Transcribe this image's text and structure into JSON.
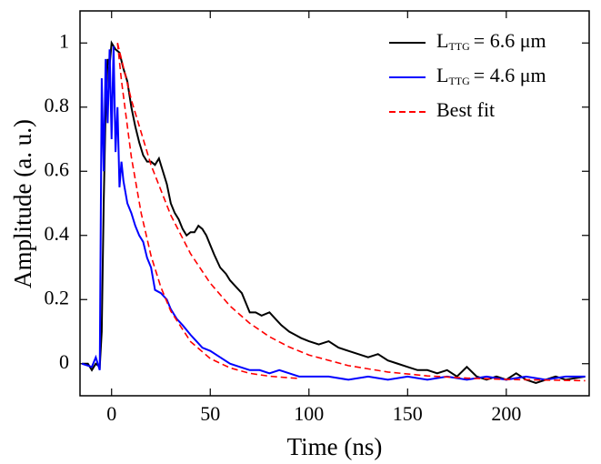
{
  "chart_data": {
    "type": "line",
    "xlabel": "Time (ns)",
    "ylabel": "Amplitude (a. u.)",
    "xlim": [
      -16,
      242
    ],
    "ylim": [
      -0.1,
      1.1
    ],
    "xticks": [
      0,
      50,
      100,
      150,
      200
    ],
    "yticks": [
      0,
      0.2,
      0.4,
      0.6,
      0.8,
      1
    ],
    "legend": "upper right",
    "series": [
      {
        "name": {
          "main": "L",
          "sub": "TTG",
          "rest": "= 6.6 μm"
        },
        "color": "#000000",
        "style": "solid",
        "x": [
          -15,
          -12,
          -10,
          -8,
          -6,
          -5,
          -4,
          -3,
          -2,
          -1,
          0,
          2,
          4,
          6,
          8,
          10,
          12,
          14,
          16,
          18,
          20,
          22,
          24,
          26,
          28,
          30,
          32,
          34,
          36,
          38,
          40,
          42,
          44,
          46,
          48,
          50,
          52,
          55,
          58,
          60,
          63,
          66,
          70,
          73,
          76,
          80,
          83,
          86,
          90,
          93,
          96,
          100,
          105,
          110,
          115,
          120,
          125,
          130,
          135,
          140,
          145,
          150,
          155,
          160,
          165,
          170,
          175,
          180,
          185,
          190,
          195,
          200,
          205,
          210,
          215,
          220,
          225,
          230,
          240
        ],
        "values": [
          0,
          0,
          -0.02,
          0,
          -0.01,
          0.1,
          0.5,
          0.8,
          0.95,
          0.93,
          1.0,
          0.98,
          0.97,
          0.92,
          0.88,
          0.8,
          0.74,
          0.69,
          0.65,
          0.63,
          0.63,
          0.62,
          0.64,
          0.6,
          0.56,
          0.5,
          0.47,
          0.45,
          0.42,
          0.4,
          0.41,
          0.41,
          0.43,
          0.42,
          0.4,
          0.37,
          0.34,
          0.3,
          0.28,
          0.26,
          0.24,
          0.22,
          0.16,
          0.16,
          0.15,
          0.16,
          0.14,
          0.12,
          0.1,
          0.09,
          0.08,
          0.07,
          0.06,
          0.07,
          0.05,
          0.04,
          0.03,
          0.02,
          0.03,
          0.01,
          0.0,
          -0.01,
          -0.02,
          -0.02,
          -0.03,
          -0.02,
          -0.04,
          -0.01,
          -0.04,
          -0.05,
          -0.04,
          -0.05,
          -0.03,
          -0.05,
          -0.06,
          -0.05,
          -0.04,
          -0.05,
          -0.04
        ]
      },
      {
        "name": {
          "main": "L",
          "sub": "TTG",
          "rest": "= 4.6 μm"
        },
        "color": "#0000ff",
        "style": "solid",
        "x": [
          -15,
          -10,
          -8,
          -6,
          -5,
          -4,
          -3,
          -2,
          -1,
          0,
          1,
          2,
          3,
          4,
          5,
          6,
          8,
          10,
          12,
          14,
          16,
          18,
          20,
          22,
          25,
          28,
          30,
          33,
          36,
          40,
          43,
          46,
          50,
          55,
          60,
          65,
          70,
          75,
          80,
          85,
          90,
          95,
          100,
          110,
          120,
          130,
          140,
          150,
          160,
          170,
          180,
          190,
          200,
          210,
          220,
          230,
          240
        ],
        "values": [
          0,
          -0.01,
          0.02,
          -0.02,
          0.89,
          0.6,
          0.95,
          0.75,
          0.98,
          0.7,
          0.99,
          0.66,
          0.8,
          0.55,
          0.63,
          0.57,
          0.5,
          0.47,
          0.43,
          0.4,
          0.38,
          0.33,
          0.3,
          0.23,
          0.22,
          0.2,
          0.17,
          0.14,
          0.12,
          0.09,
          0.07,
          0.05,
          0.04,
          0.02,
          0.0,
          -0.01,
          -0.02,
          -0.02,
          -0.03,
          -0.02,
          -0.03,
          -0.04,
          -0.04,
          -0.04,
          -0.05,
          -0.04,
          -0.05,
          -0.04,
          -0.05,
          -0.04,
          -0.05,
          -0.04,
          -0.05,
          -0.04,
          -0.05,
          -0.04,
          -0.04
        ]
      },
      {
        "name": "Best fit",
        "color": "#ff0000",
        "style": "dashed",
        "x": [
          3,
          10,
          20,
          30,
          40,
          50,
          60,
          70,
          80,
          90,
          100,
          120,
          140,
          160,
          180,
          200,
          230,
          240
        ],
        "values": [
          1.0,
          0.823,
          0.619,
          0.463,
          0.343,
          0.251,
          0.18,
          0.126,
          0.084,
          0.052,
          0.027,
          -0.006,
          -0.026,
          -0.038,
          -0.045,
          -0.049,
          -0.052,
          -0.053
        ]
      },
      {
        "color": "#ff0000",
        "style": "dashed",
        "x": [
          3,
          5,
          10,
          15,
          20,
          25,
          30,
          40,
          50,
          60,
          70,
          80,
          90,
          95
        ],
        "values": [
          1.0,
          0.883,
          0.645,
          0.469,
          0.336,
          0.238,
          0.164,
          0.069,
          0.016,
          -0.013,
          -0.03,
          -0.039,
          -0.044,
          -0.046
        ]
      }
    ]
  }
}
